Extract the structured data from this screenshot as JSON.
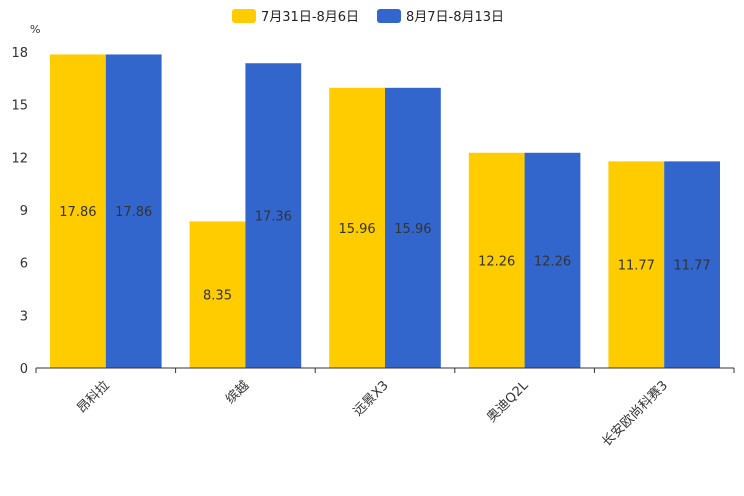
{
  "chart_data": {
    "type": "bar",
    "title": "",
    "ylabel": "%",
    "xlabel": "",
    "categories": [
      "昂科拉",
      "缤越",
      "远景X3",
      "奥迪Q2L",
      "长安欧尚科赛3"
    ],
    "series": [
      {
        "name": "7月31日-8月6日",
        "color": "#FFCC00",
        "values": [
          17.86,
          8.35,
          15.96,
          12.26,
          11.77
        ]
      },
      {
        "name": "8月7日-8月13日",
        "color": "#3366CC",
        "values": [
          17.86,
          17.36,
          15.96,
          12.26,
          11.77
        ]
      }
    ],
    "ylim": [
      0,
      18
    ],
    "yticks": [
      0,
      3,
      6,
      9,
      12,
      15,
      18
    ],
    "grid": false,
    "legend": "top-center"
  }
}
